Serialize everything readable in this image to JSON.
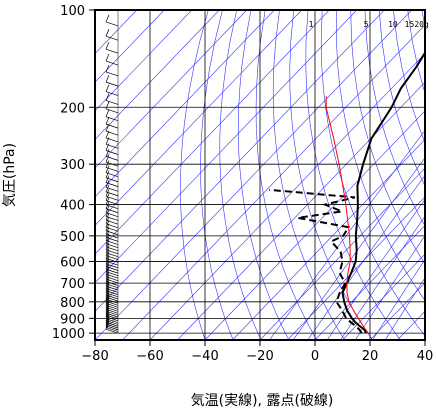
{
  "chart_data": {
    "type": "line",
    "title": "",
    "xlabel": "気温(実線), 露点(破線)",
    "ylabel": "気圧(hPa)",
    "xlim": [
      -80,
      40
    ],
    "ylim": [
      1050,
      100
    ],
    "y_scale": "log",
    "grid": true,
    "x_ticks": [
      -80,
      -60,
      -40,
      -20,
      0,
      20,
      40
    ],
    "y_ticks": [
      100,
      200,
      300,
      400,
      500,
      600,
      700,
      800,
      900,
      1000
    ],
    "mixing_ratio_labels": [
      "1",
      "5",
      "10",
      "15",
      "20g"
    ],
    "series": [
      {
        "name": "",
        "style": "solid",
        "color": "#000000",
        "pressure": [
          1000,
          975,
          950,
          925,
          900,
          850,
          800,
          750,
          700,
          650,
          600,
          550,
          500,
          450,
          400,
          350,
          300,
          250,
          200,
          175,
          150,
          130,
          120,
          110,
          100
        ],
        "values": [
          16.2,
          14.3,
          11.3,
          8.4,
          5.9,
          1.3,
          -2.7,
          -6.5,
          -8.3,
          -10.3,
          -12.6,
          -16.5,
          -21.5,
          -26.2,
          -31.7,
          -38.4,
          -43.9,
          -49.8,
          -53.4,
          -56.6,
          -58.5,
          -61.0,
          -61.3,
          -61.6,
          -61.7
        ]
      },
      {
        "name": "",
        "style": "dashed",
        "color": "#000000",
        "pressure": [
          1000,
          975,
          950,
          925,
          900,
          850,
          800,
          750,
          700,
          650,
          600,
          560,
          520,
          500,
          470,
          440,
          420,
          400,
          380,
          360
        ],
        "values": [
          14.6,
          12.5,
          9.9,
          6.8,
          3.8,
          -0.5,
          -5.5,
          -7.5,
          -8.9,
          -14.6,
          -17.4,
          -21.5,
          -28.5,
          -26.1,
          -27.2,
          -48.9,
          -35.1,
          -43.7,
          -35.3,
          -69.1
        ]
      },
      {
        "name": "",
        "style": "solid",
        "color": "#ff0000",
        "pressure": [
          1000,
          950,
          900,
          850,
          800,
          750,
          700,
          650,
          600,
          550,
          500,
          450,
          400,
          350,
          300,
          250,
          200,
          185
        ],
        "values": [
          17.0,
          12.6,
          8.2,
          3.6,
          -1.0,
          -4.8,
          -8.3,
          -11.5,
          -14.6,
          -18.9,
          -23.8,
          -29.6,
          -36.1,
          -43.7,
          -52.6,
          -63.5,
          -77.2,
          -81.0
        ]
      }
    ]
  }
}
